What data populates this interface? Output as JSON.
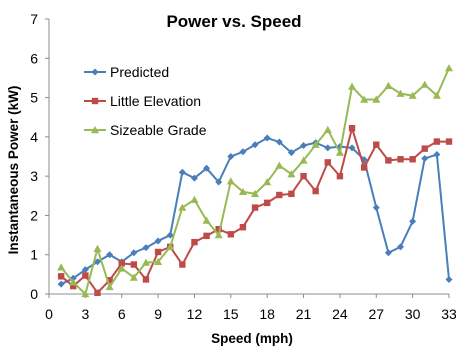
{
  "chart_data": {
    "type": "line",
    "title": "Power vs. Speed",
    "xlabel": "Speed (mph)",
    "ylabel": "Instantaneous Power (kW)",
    "xlim": [
      0,
      33
    ],
    "ylim": [
      0,
      7
    ],
    "xticks": [
      "0",
      "3",
      "6",
      "9",
      "12",
      "15",
      "18",
      "21",
      "24",
      "27",
      "30",
      "33"
    ],
    "yticks": [
      "0",
      "1",
      "2",
      "3",
      "4",
      "5",
      "6",
      "7"
    ],
    "grid": false,
    "legend_position": "upper-left",
    "series": [
      {
        "name": "Predicted",
        "color": "#4a7ebb",
        "marker": "diamond",
        "x": [
          1,
          2,
          3,
          4,
          5,
          6,
          7,
          8,
          9,
          10,
          11,
          12,
          13,
          14,
          15,
          16,
          17,
          18,
          19,
          20,
          21,
          22,
          23,
          24,
          25,
          26,
          27,
          28,
          29,
          30,
          31,
          32,
          33
        ],
        "y": [
          0.25,
          0.4,
          0.62,
          0.82,
          1.0,
          0.82,
          1.05,
          1.18,
          1.35,
          1.5,
          3.1,
          2.95,
          3.2,
          2.85,
          3.5,
          3.62,
          3.8,
          3.97,
          3.87,
          3.6,
          3.78,
          3.85,
          3.72,
          3.75,
          3.72,
          3.42,
          2.2,
          1.05,
          1.2,
          1.85,
          3.45,
          3.55,
          0.37
        ]
      },
      {
        "name": "Little Elevation",
        "color": "#be4b48",
        "marker": "square",
        "x": [
          1,
          2,
          3,
          4,
          5,
          6,
          7,
          8,
          9,
          10,
          11,
          12,
          13,
          14,
          15,
          16,
          17,
          18,
          19,
          20,
          21,
          22,
          23,
          24,
          25,
          26,
          27,
          28,
          29,
          30,
          31,
          32,
          33
        ],
        "y": [
          0.45,
          0.2,
          0.47,
          0.03,
          0.35,
          0.78,
          0.75,
          0.37,
          1.07,
          1.2,
          0.75,
          1.32,
          1.48,
          1.65,
          1.52,
          1.7,
          2.2,
          2.32,
          2.52,
          2.55,
          3.0,
          2.62,
          3.35,
          3.0,
          4.22,
          3.22,
          3.8,
          3.4,
          3.43,
          3.43,
          3.7,
          3.88,
          3.88
        ]
      },
      {
        "name": "Sizeable Grade",
        "color": "#98b954",
        "marker": "triangle",
        "x": [
          1,
          2,
          3,
          4,
          5,
          6,
          7,
          8,
          9,
          10,
          11,
          12,
          13,
          14,
          15,
          16,
          17,
          18,
          19,
          20,
          21,
          22,
          23,
          24,
          25,
          26,
          27,
          28,
          29,
          30,
          31,
          32,
          33
        ],
        "y": [
          0.68,
          0.3,
          0.0,
          1.15,
          0.18,
          0.65,
          0.42,
          0.8,
          0.82,
          1.2,
          2.2,
          2.4,
          1.87,
          1.5,
          2.87,
          2.6,
          2.55,
          2.85,
          3.27,
          3.05,
          3.4,
          3.8,
          4.18,
          3.6,
          5.28,
          4.95,
          4.95,
          5.3,
          5.1,
          5.05,
          5.33,
          5.05,
          5.75
        ]
      }
    ]
  }
}
